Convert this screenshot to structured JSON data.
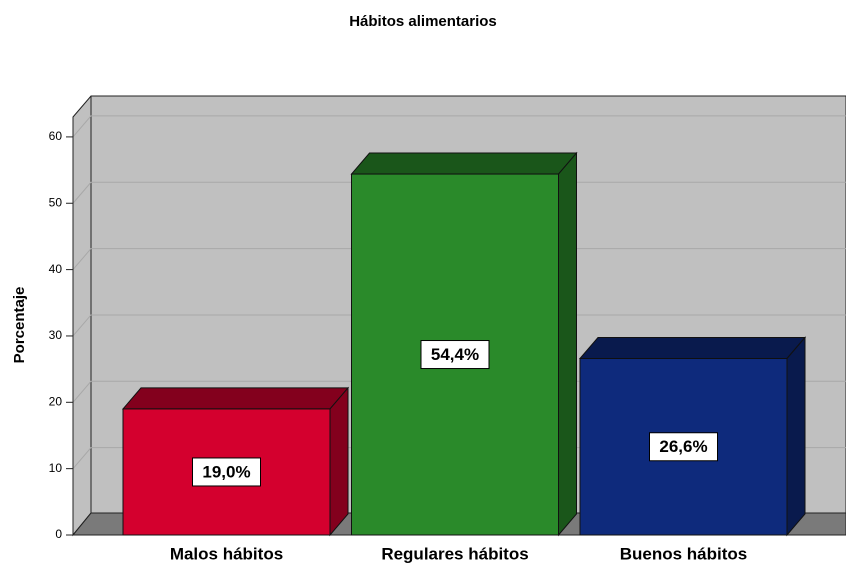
{
  "chart_data": {
    "type": "bar3d",
    "title": "Hábitos alimentarios",
    "y_label": "Porcentaje",
    "categories": [
      "Malos hábitos",
      "Regulares hábitos",
      "Buenos hábitos"
    ],
    "values": [
      19.0,
      54.4,
      26.6
    ],
    "value_labels": [
      "19,0%",
      "54,4%",
      "26,6%"
    ],
    "colors": [
      "#d4002e",
      "#2a8a2a",
      "#0e2a7c"
    ],
    "ylim": [
      0,
      63
    ],
    "yticks": [
      0,
      10,
      20,
      30,
      40,
      50,
      60
    ],
    "grid": true
  }
}
